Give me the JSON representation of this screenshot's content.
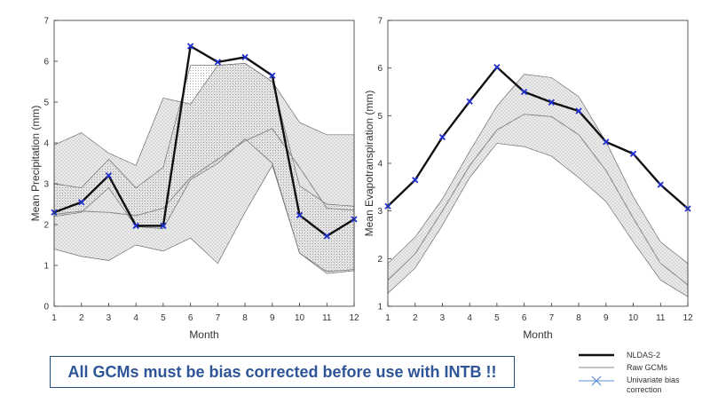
{
  "chart_data": [
    {
      "type": "line",
      "ylabel": "Mean Precipitation (mm)",
      "xlabel": "Month",
      "x": [
        1,
        2,
        3,
        4,
        5,
        6,
        7,
        8,
        9,
        10,
        11,
        12
      ],
      "xlim": [
        1,
        12
      ],
      "ylim": [
        0,
        7
      ],
      "yticks": [
        0,
        1,
        2,
        3,
        4,
        5,
        6,
        7
      ],
      "series": [
        {
          "name": "NLDAS-2",
          "values": [
            2.3,
            2.55,
            3.2,
            1.97,
            1.97,
            6.37,
            5.98,
            6.1,
            5.65,
            2.23,
            1.72,
            2.13
          ]
        },
        {
          "name": "Raw GCMs",
          "role": "median",
          "values": [
            2.25,
            2.33,
            2.3,
            2.22,
            2.4,
            3.15,
            3.6,
            4.05,
            4.35,
            3.4,
            2.4,
            2.35
          ]
        },
        {
          "name": "Raw GCMs",
          "role": "upper",
          "values": [
            3.95,
            4.25,
            3.75,
            3.45,
            5.1,
            4.95,
            5.9,
            5.95,
            5.5,
            4.5,
            4.2,
            4.2
          ]
        },
        {
          "name": "Raw GCMs",
          "role": "lower",
          "values": [
            1.4,
            1.22,
            1.12,
            1.5,
            1.35,
            1.67,
            1.05,
            2.3,
            3.45,
            1.3,
            0.8,
            0.87
          ]
        },
        {
          "name": "Univariate bias correction",
          "role": "upper",
          "values": [
            3.0,
            2.9,
            3.6,
            2.9,
            3.4,
            5.9,
            5.9,
            5.95,
            5.5,
            2.95,
            2.5,
            2.45
          ]
        },
        {
          "name": "Univariate bias correction",
          "role": "lower",
          "values": [
            2.2,
            2.3,
            2.9,
            1.95,
            1.9,
            3.1,
            3.5,
            4.1,
            3.5,
            1.3,
            0.85,
            0.9
          ]
        }
      ]
    },
    {
      "type": "line",
      "ylabel": "Mean Evapotranspiration (mm)",
      "xlabel": "Month",
      "x": [
        1,
        2,
        3,
        4,
        5,
        6,
        7,
        8,
        9,
        10,
        11,
        12
      ],
      "xlim": [
        1,
        12
      ],
      "ylim": [
        1,
        7
      ],
      "yticks": [
        1,
        2,
        3,
        4,
        5,
        6,
        7
      ],
      "series": [
        {
          "name": "NLDAS-2",
          "values": [
            3.1,
            3.65,
            4.55,
            5.3,
            6.02,
            5.5,
            5.28,
            5.1,
            4.45,
            4.2,
            3.55,
            3.05
          ]
        },
        {
          "name": "Raw GCMs",
          "role": "median",
          "values": [
            1.55,
            2.1,
            3.0,
            3.95,
            4.7,
            5.03,
            4.98,
            4.6,
            3.85,
            2.85,
            1.9,
            1.45
          ]
        },
        {
          "name": "Raw GCMs",
          "role": "upper",
          "values": [
            1.9,
            2.45,
            3.25,
            4.25,
            5.2,
            5.87,
            5.8,
            5.4,
            4.45,
            3.3,
            2.35,
            1.9
          ]
        },
        {
          "name": "Raw GCMs",
          "role": "lower",
          "values": [
            1.27,
            1.8,
            2.7,
            3.7,
            4.42,
            4.35,
            4.15,
            3.7,
            3.2,
            2.35,
            1.55,
            1.2
          ]
        }
      ]
    }
  ],
  "legend": {
    "items": [
      {
        "label": "NLDAS-2",
        "color": "#111111",
        "style": "thick-line"
      },
      {
        "label": "Raw GCMs",
        "color": "#888888",
        "style": "thin-line"
      },
      {
        "label": "Univariate bias correction",
        "color": "#5b8fd9",
        "style": "cross-line"
      }
    ]
  },
  "banner": {
    "text": "All GCMs must be bias corrected before use with INTB !!"
  },
  "colors": {
    "observed": "#111111",
    "marker": "#1f2fd1",
    "gcm": "#888888",
    "band_fill": "#ececec",
    "band_dots": "#8c8c8c"
  }
}
